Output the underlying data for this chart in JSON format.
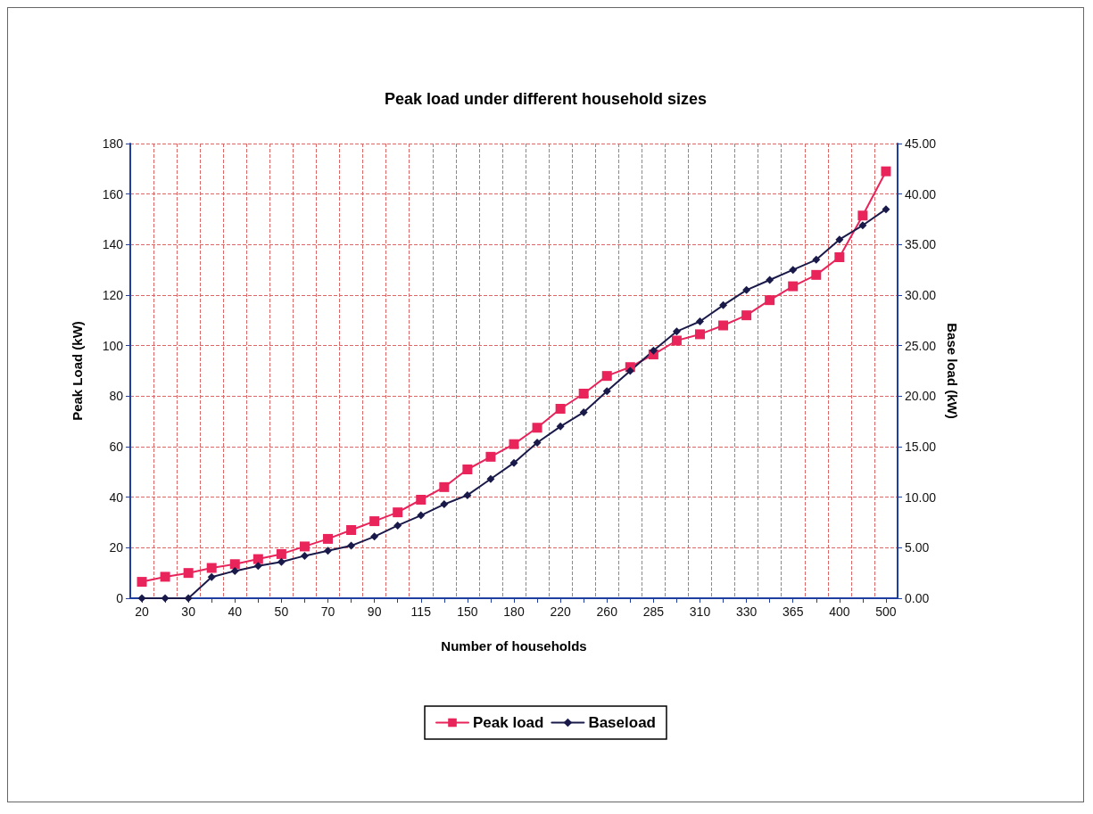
{
  "chart_data": {
    "type": "line",
    "title": "Peak load under different household sizes",
    "xlabel": "Number of households",
    "ylabel": "Peak Load (kW)",
    "y2label": "Base load (kW)",
    "categories": [
      "20",
      null,
      "30",
      null,
      "40",
      null,
      "50",
      null,
      "70",
      null,
      "90",
      null,
      "115",
      null,
      "150",
      null,
      "180",
      null,
      "220",
      null,
      "260",
      null,
      "285",
      null,
      "310",
      null,
      "330",
      null,
      "365",
      null,
      "400",
      null,
      "500"
    ],
    "series": [
      {
        "name": "Peak load",
        "color": "#e8245a",
        "marker": "square",
        "values": [
          6.5,
          8.5,
          10,
          12,
          13.5,
          15.5,
          17.5,
          20.5,
          23.5,
          27,
          30.5,
          34,
          39,
          44,
          51,
          56,
          61,
          67.5,
          75,
          81,
          88,
          91.5,
          96.5,
          102,
          104.5,
          108,
          112,
          118,
          123.5,
          128,
          135,
          151.5,
          169
        ]
      },
      {
        "name": "Baseload",
        "color": "#1a1a4a",
        "marker": "diamond",
        "axis": "y2",
        "values": [
          0,
          0,
          0,
          2.1,
          2.7,
          3.2,
          3.6,
          4.2,
          4.7,
          5.2,
          6.1,
          7.2,
          8.2,
          9.3,
          10.2,
          11.8,
          13.4,
          15.4,
          17,
          18.4,
          20.5,
          22.5,
          24.5,
          26.4,
          27.4,
          29,
          30.5,
          31.5,
          32.5,
          33.5,
          35.5,
          36.9,
          38.5
        ]
      }
    ],
    "ylim": [
      0,
      180
    ],
    "yticks": [
      0,
      20,
      40,
      60,
      80,
      100,
      120,
      140,
      160,
      180
    ],
    "y2lim": [
      0,
      45
    ],
    "y2ticks": [
      {
        "value": 0,
        "label": "0.00"
      },
      {
        "value": 5,
        "label": "5.00"
      },
      {
        "value": 10,
        "label": "10.00"
      },
      {
        "value": 15,
        "label": "15.00"
      },
      {
        "value": 20,
        "label": "20.00"
      },
      {
        "value": 25,
        "label": "25.00"
      },
      {
        "value": 30,
        "label": "30.00"
      },
      {
        "value": 35,
        "label": "35.00"
      },
      {
        "value": 40,
        "label": "40.00"
      },
      {
        "value": 45,
        "label": "45.00"
      }
    ],
    "grid": true,
    "legend": "bottom",
    "line_style": "solid"
  }
}
